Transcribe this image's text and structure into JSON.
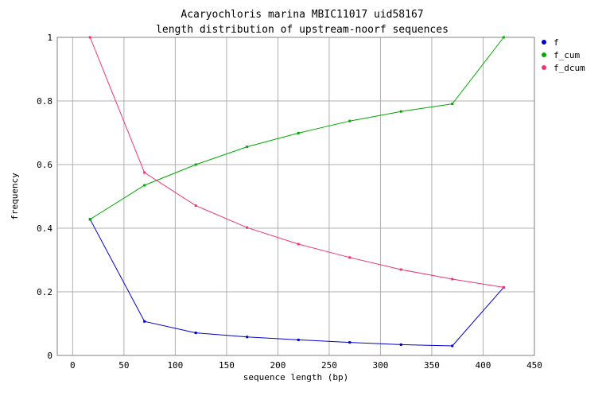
{
  "chart_data": {
    "type": "line",
    "title": "Acaryochloris marina MBIC11017 uid58167",
    "subtitle": "length distribution of upstream-noorf sequences",
    "xlabel": "sequence length (bp)",
    "ylabel": "frequency",
    "xlim": [
      -15,
      450
    ],
    "ylim": [
      0,
      1
    ],
    "xticks": [
      0,
      50,
      100,
      150,
      200,
      250,
      300,
      350,
      400,
      450
    ],
    "yticks": [
      0,
      0.2,
      0.4,
      0.6,
      0.8,
      1
    ],
    "ytick_labels": [
      "0",
      "0.2",
      "0.4",
      "0.6",
      "0.8",
      "1"
    ],
    "grid": true,
    "legend_position": "top-right",
    "x": [
      17,
      70,
      120,
      170,
      220,
      270,
      320,
      370,
      420
    ],
    "series": [
      {
        "name": "f",
        "color": "#0000cc",
        "values": [
          0.428,
          0.107,
          0.071,
          0.058,
          0.049,
          0.041,
          0.034,
          0.03,
          0.214
        ]
      },
      {
        "name": "f_cum",
        "color": "#00aa00",
        "values": [
          0.428,
          0.535,
          0.6,
          0.656,
          0.699,
          0.737,
          0.767,
          0.791,
          1.0
        ]
      },
      {
        "name": "f_dcum",
        "color": "#ee3377",
        "values": [
          1.0,
          0.575,
          0.471,
          0.402,
          0.35,
          0.308,
          0.27,
          0.24,
          0.214
        ]
      }
    ]
  }
}
